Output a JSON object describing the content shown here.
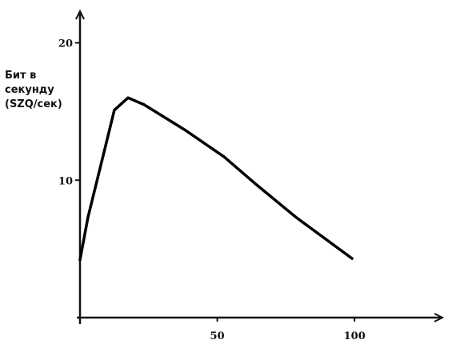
{
  "chart_data": {
    "type": "line",
    "ylabel": "Бит в секунду (SZQ/сек)",
    "x": [
      0,
      2.9,
      8.7,
      12.5,
      17.5,
      23.3,
      37.9,
      52.5,
      64.1,
      78.7,
      99.1
    ],
    "series": [
      {
        "color": "#000000",
        "values": [
          4.2,
          7.3,
          12.0,
          15.1,
          16.0,
          15.5,
          13.7,
          11.7,
          9.7,
          7.3,
          4.3
        ]
      }
    ],
    "xlim": [
      0,
      132
    ],
    "ylim": [
      0,
      22.3
    ],
    "xticks": [
      50,
      100
    ],
    "yticks": [
      10,
      20
    ],
    "grid": false
  }
}
